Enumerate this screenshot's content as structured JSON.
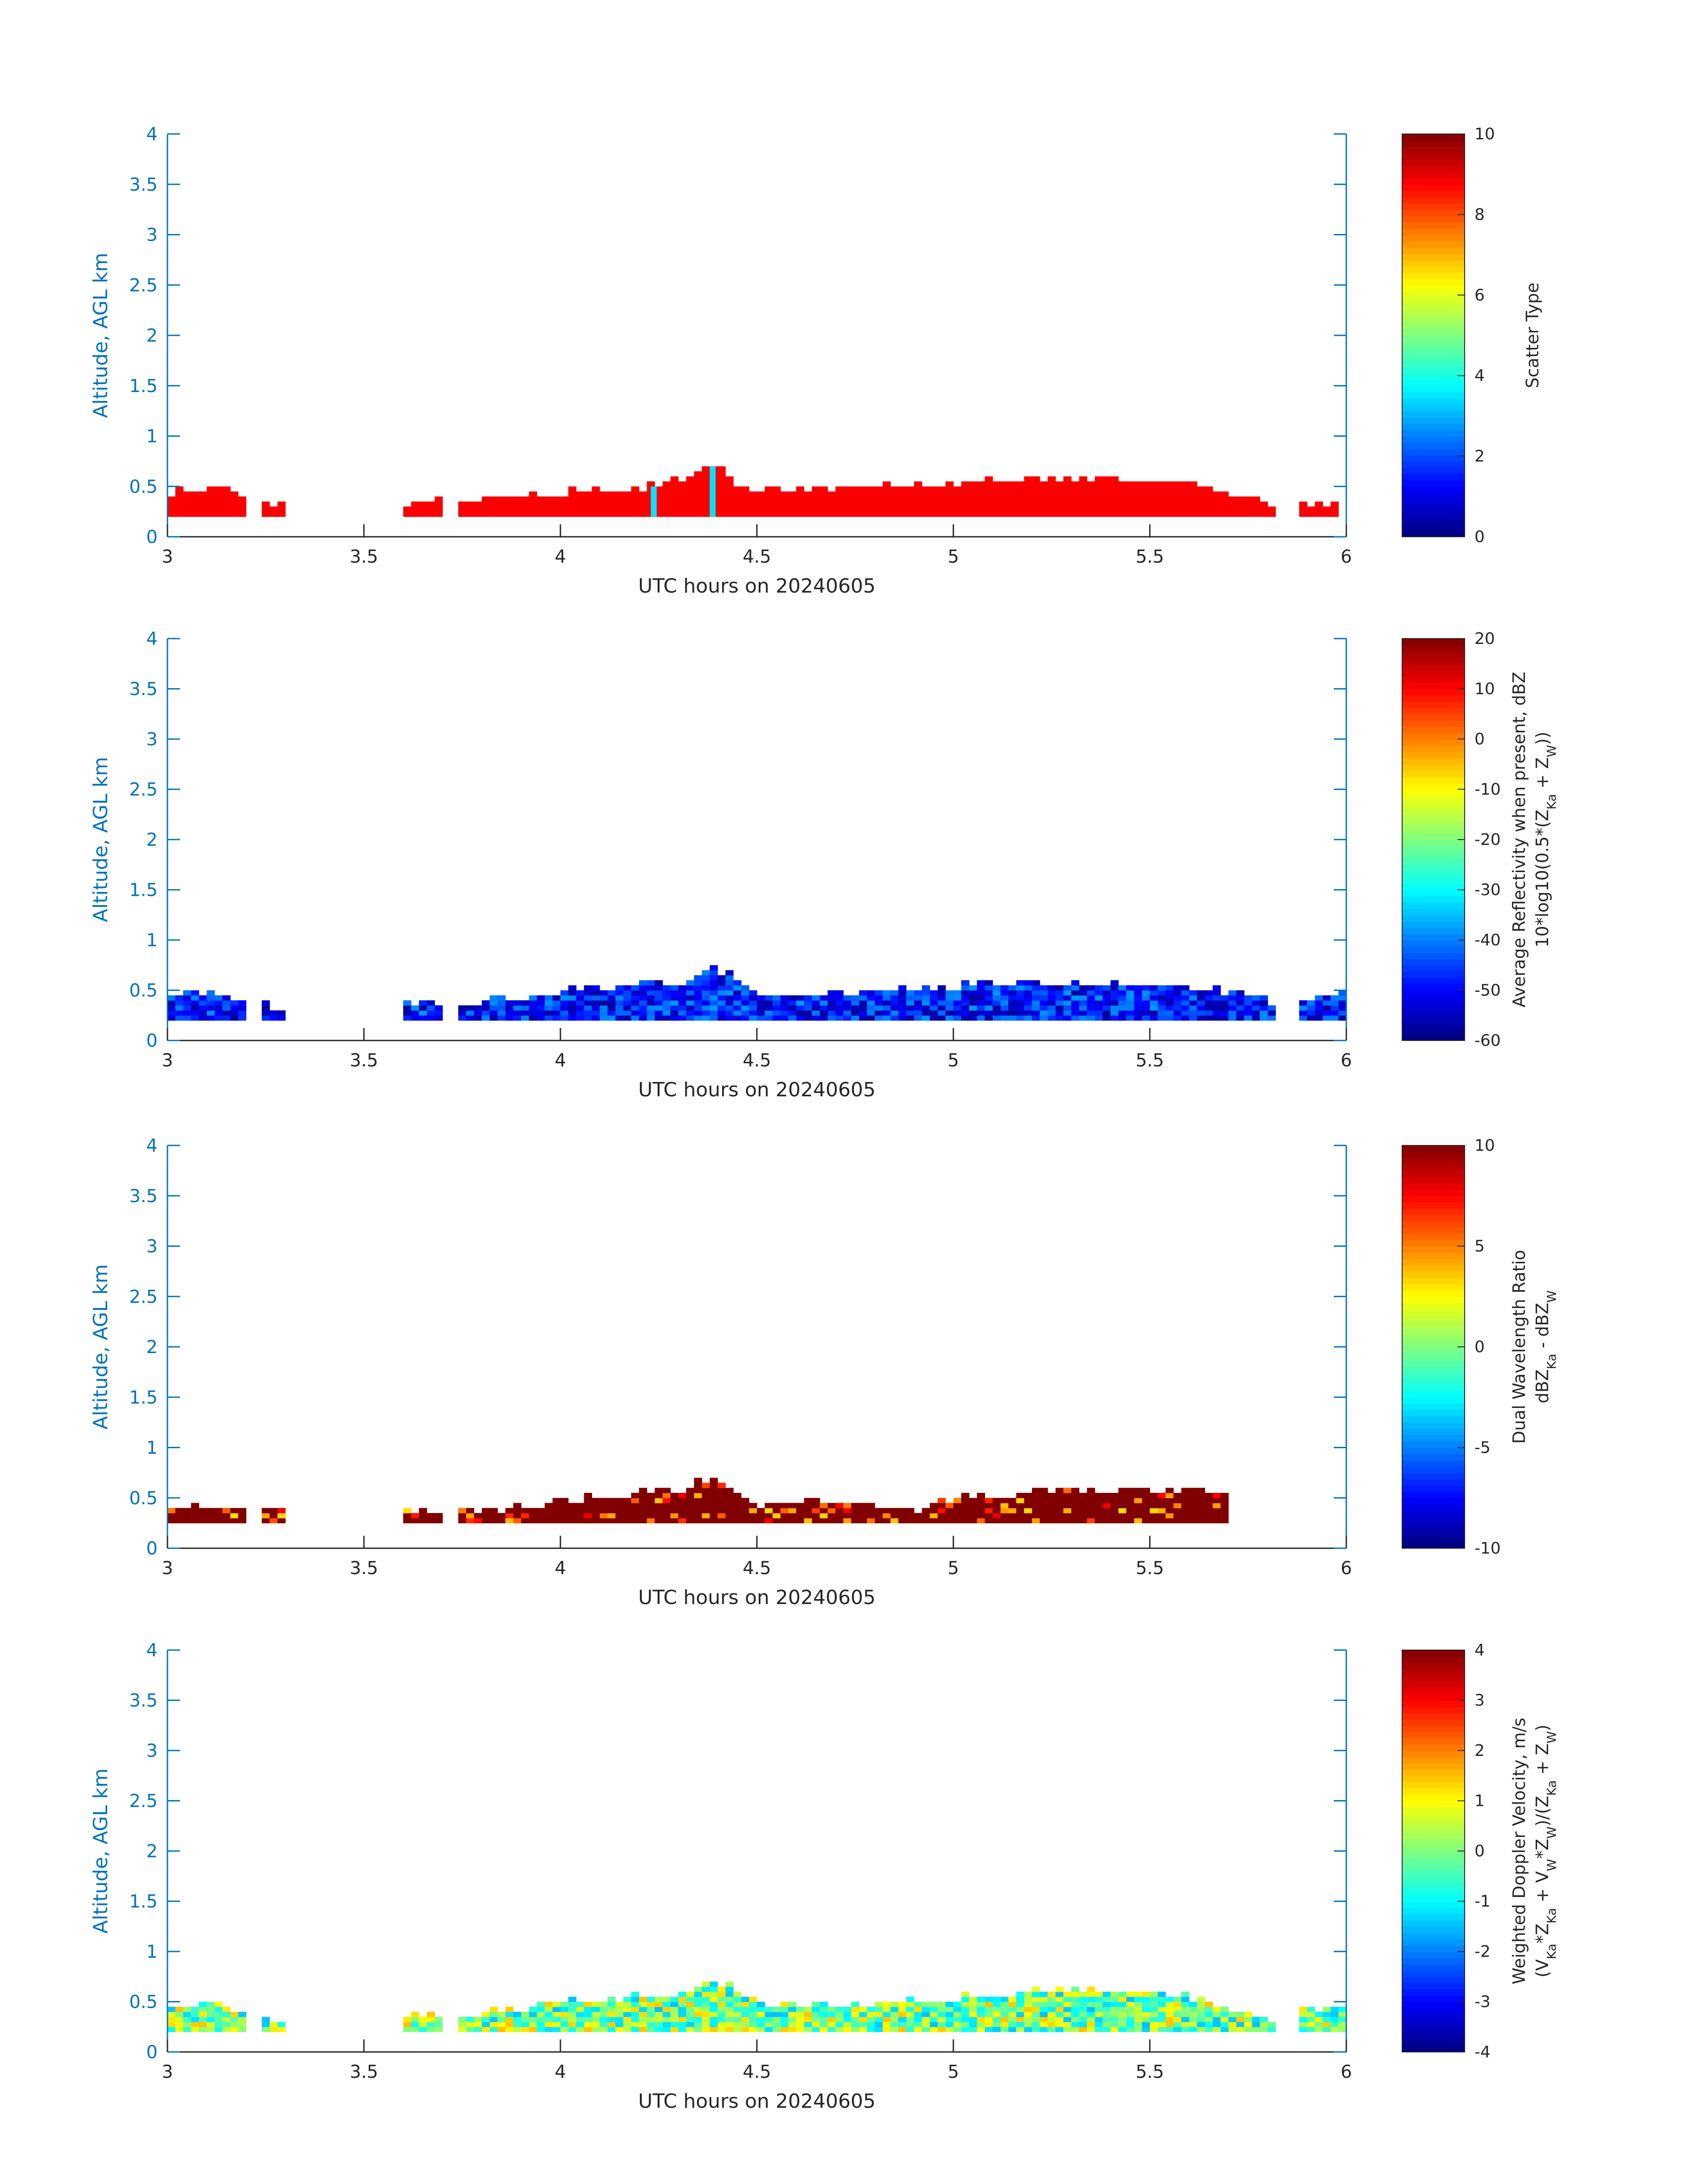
{
  "figure": {
    "x_axis": {
      "label": "UTC hours on 20240605",
      "range": [
        3,
        6
      ],
      "tick_labels": [
        "3",
        "3.5",
        "4",
        "4.5",
        "5",
        "5.5",
        "6"
      ]
    },
    "y_axis": {
      "label": "Altitude, AGL km",
      "range": [
        0,
        4
      ],
      "tick_labels": [
        "0",
        "0.5",
        "1",
        "1.5",
        "2",
        "2.5",
        "3",
        "3.5",
        "4"
      ]
    },
    "axis_color": "#0072BD",
    "colormap": "jet"
  },
  "chart_data": [
    {
      "type": "heatmap",
      "id": "scatter-type",
      "colorbar_label_lines": [
        "Scatter Type"
      ],
      "colorbar_range": [
        0,
        10
      ],
      "colorbar_tick_labels": [
        "0",
        "2",
        "4",
        "6",
        "8",
        "10"
      ],
      "dominant_value": 8.8,
      "x_extent_hours": [
        3.0,
        5.98
      ],
      "altitude_bottom_km": 0.2,
      "altitude_top_km_profile": [
        [
          3.0,
          0.4
        ],
        [
          3.1,
          0.45
        ],
        [
          3.3,
          0.25
        ],
        [
          3.6,
          0.3
        ],
        [
          3.8,
          0.35
        ],
        [
          4.0,
          0.4
        ],
        [
          4.2,
          0.45
        ],
        [
          4.3,
          0.55
        ],
        [
          4.37,
          0.7
        ],
        [
          4.45,
          0.45
        ],
        [
          4.7,
          0.45
        ],
        [
          5.0,
          0.5
        ],
        [
          5.3,
          0.55
        ],
        [
          5.6,
          0.5
        ],
        [
          5.8,
          0.3
        ],
        [
          5.98,
          0.3
        ]
      ],
      "highlights": [
        {
          "x": 4.23,
          "value": 3.5,
          "y_top": 0.5
        },
        {
          "x": 4.38,
          "value": 3.5,
          "y_top": 0.7
        }
      ]
    },
    {
      "type": "heatmap",
      "id": "reflectivity",
      "colorbar_label_lines": [
        "Average Reflectivity when present, dBZ",
        "10*log10(0.5*(Z_Ka + Z_W))"
      ],
      "colorbar_range": [
        -60,
        20
      ],
      "colorbar_tick_labels": [
        "-60",
        "-50",
        "-40",
        "-30",
        "-20",
        "-10",
        "0",
        "10",
        "20"
      ],
      "value_range_present": [
        -58,
        -38
      ],
      "x_extent_hours": [
        3.0,
        6.0
      ],
      "altitude_bottom_km": 0.2,
      "altitude_top_km_profile": [
        [
          3.0,
          0.45
        ],
        [
          3.1,
          0.45
        ],
        [
          3.3,
          0.25
        ],
        [
          3.6,
          0.35
        ],
        [
          3.8,
          0.35
        ],
        [
          4.0,
          0.45
        ],
        [
          4.3,
          0.55
        ],
        [
          4.37,
          0.7
        ],
        [
          4.5,
          0.45
        ],
        [
          4.8,
          0.45
        ],
        [
          5.0,
          0.5
        ],
        [
          5.3,
          0.55
        ],
        [
          5.6,
          0.5
        ],
        [
          5.8,
          0.35
        ],
        [
          6.0,
          0.45
        ]
      ]
    },
    {
      "type": "heatmap",
      "id": "dual-wavelength-ratio",
      "colorbar_label_lines": [
        "Dual Wavelength Ratio",
        "dBZ_Ka - dBZ_W"
      ],
      "colorbar_range": [
        -10,
        10
      ],
      "colorbar_tick_labels": [
        "-10",
        "-5",
        "0",
        "5",
        "10"
      ],
      "dominant_value": 10,
      "x_extent_hours": [
        3.0,
        5.7
      ],
      "altitude_bottom_km": 0.25,
      "altitude_top_km_profile": [
        [
          3.0,
          0.4
        ],
        [
          3.1,
          0.4
        ],
        [
          3.65,
          0.3
        ],
        [
          3.85,
          0.35
        ],
        [
          4.05,
          0.45
        ],
        [
          4.3,
          0.55
        ],
        [
          4.37,
          0.65
        ],
        [
          4.5,
          0.4
        ],
        [
          4.7,
          0.45
        ],
        [
          4.9,
          0.35
        ],
        [
          5.0,
          0.45
        ],
        [
          5.3,
          0.55
        ],
        [
          5.5,
          0.55
        ],
        [
          5.7,
          0.5
        ]
      ]
    },
    {
      "type": "heatmap",
      "id": "doppler-velocity",
      "colorbar_label_lines": [
        "Weighted Doppler Velocity, m/s",
        "(V_Ka*Z_Ka + V_W*Z_W)/(Z_Ka + Z_W)"
      ],
      "colorbar_range": [
        -4,
        4
      ],
      "colorbar_tick_labels": [
        "-4",
        "-3",
        "-2",
        "-1",
        "0",
        "1",
        "2",
        "3",
        "4"
      ],
      "value_range_present": [
        -1.5,
        1.5
      ],
      "x_extent_hours": [
        3.0,
        6.0
      ],
      "altitude_bottom_km": 0.2,
      "altitude_top_km_profile": [
        [
          3.0,
          0.45
        ],
        [
          3.1,
          0.45
        ],
        [
          3.3,
          0.25
        ],
        [
          3.6,
          0.35
        ],
        [
          3.8,
          0.35
        ],
        [
          4.0,
          0.45
        ],
        [
          4.3,
          0.55
        ],
        [
          4.37,
          0.7
        ],
        [
          4.5,
          0.45
        ],
        [
          4.8,
          0.45
        ],
        [
          5.0,
          0.5
        ],
        [
          5.3,
          0.6
        ],
        [
          5.6,
          0.5
        ],
        [
          5.8,
          0.3
        ],
        [
          6.0,
          0.45
        ]
      ]
    }
  ]
}
